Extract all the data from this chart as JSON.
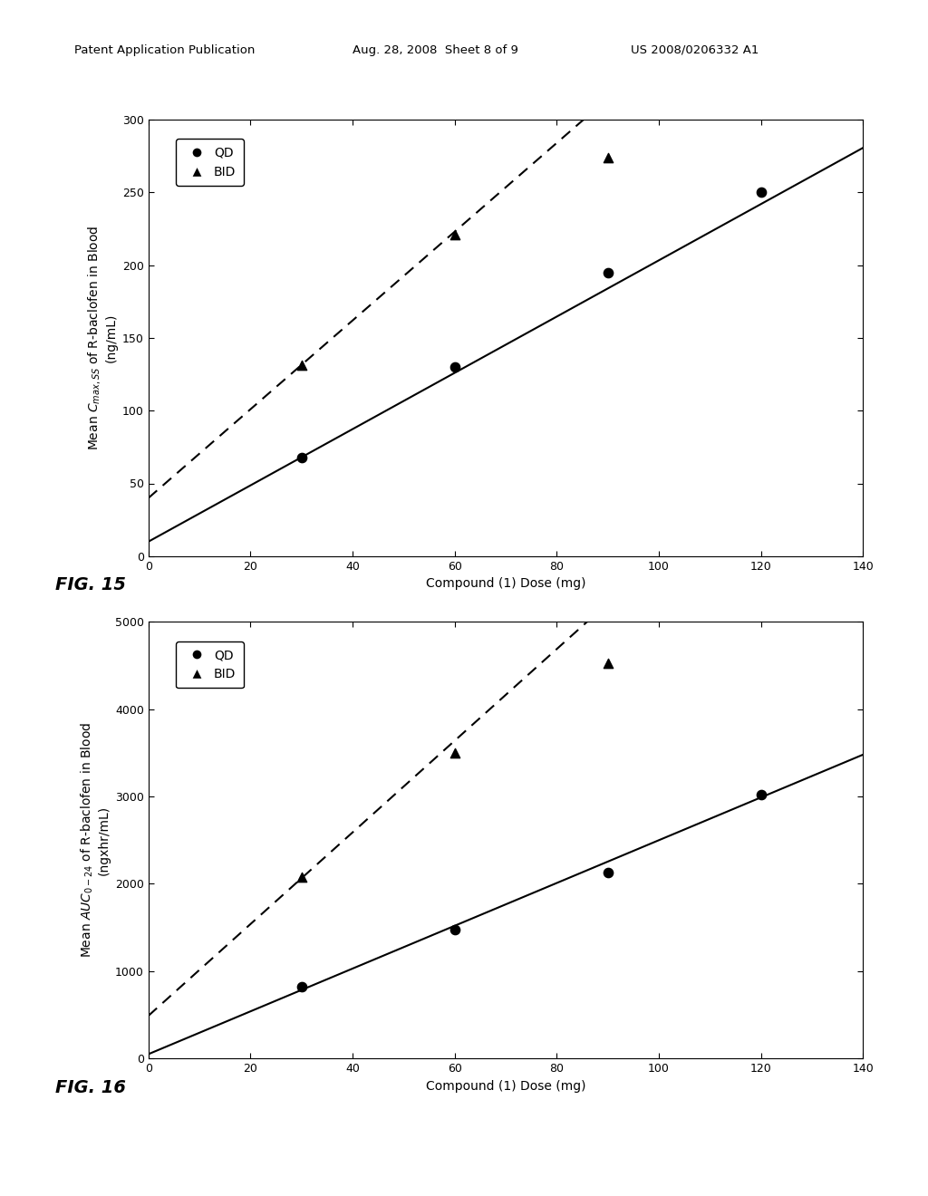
{
  "fig15": {
    "xlabel": "Compound (1) Dose (mg)",
    "xlim": [
      0,
      140
    ],
    "ylim": [
      0,
      300
    ],
    "xticks": [
      0,
      20,
      40,
      60,
      80,
      100,
      120,
      140
    ],
    "yticks": [
      0,
      50,
      100,
      150,
      200,
      250,
      300
    ],
    "qd_points": [
      [
        30,
        68
      ],
      [
        60,
        130
      ],
      [
        90,
        195
      ],
      [
        120,
        250
      ]
    ],
    "bid_points": [
      [
        30,
        131
      ],
      [
        60,
        221
      ],
      [
        90,
        274
      ]
    ],
    "qd_line": {
      "slope": 1.933,
      "intercept": 10.0
    },
    "bid_line": {
      "slope": 3.05,
      "intercept": 40.0
    }
  },
  "fig16": {
    "xlabel": "Compound (1) Dose (mg)",
    "xlim": [
      0,
      140
    ],
    "ylim": [
      0,
      5000
    ],
    "xticks": [
      0,
      20,
      40,
      60,
      80,
      100,
      120,
      140
    ],
    "yticks": [
      0,
      1000,
      2000,
      3000,
      4000,
      5000
    ],
    "qd_points": [
      [
        30,
        820
      ],
      [
        60,
        1480
      ],
      [
        90,
        2130
      ],
      [
        120,
        3020
      ]
    ],
    "bid_points": [
      [
        30,
        2080
      ],
      [
        60,
        3500
      ],
      [
        90,
        4530
      ]
    ],
    "qd_line": {
      "slope": 24.5,
      "intercept": 50.0
    },
    "bid_line": {
      "slope": 52.5,
      "intercept": 490.0
    }
  },
  "background_color": "#ffffff",
  "plot_bg_color": "#ffffff",
  "fontsize_label": 10,
  "fontsize_tick": 9,
  "fontsize_legend": 10,
  "fontsize_fig_label": 14,
  "header_left": "Patent Application Publication",
  "header_mid": "Aug. 28, 2008  Sheet 8 of 9",
  "header_right": "US 2008/0206332 A1",
  "fig15_label": "FIG. 15",
  "fig16_label": "FIG. 16"
}
